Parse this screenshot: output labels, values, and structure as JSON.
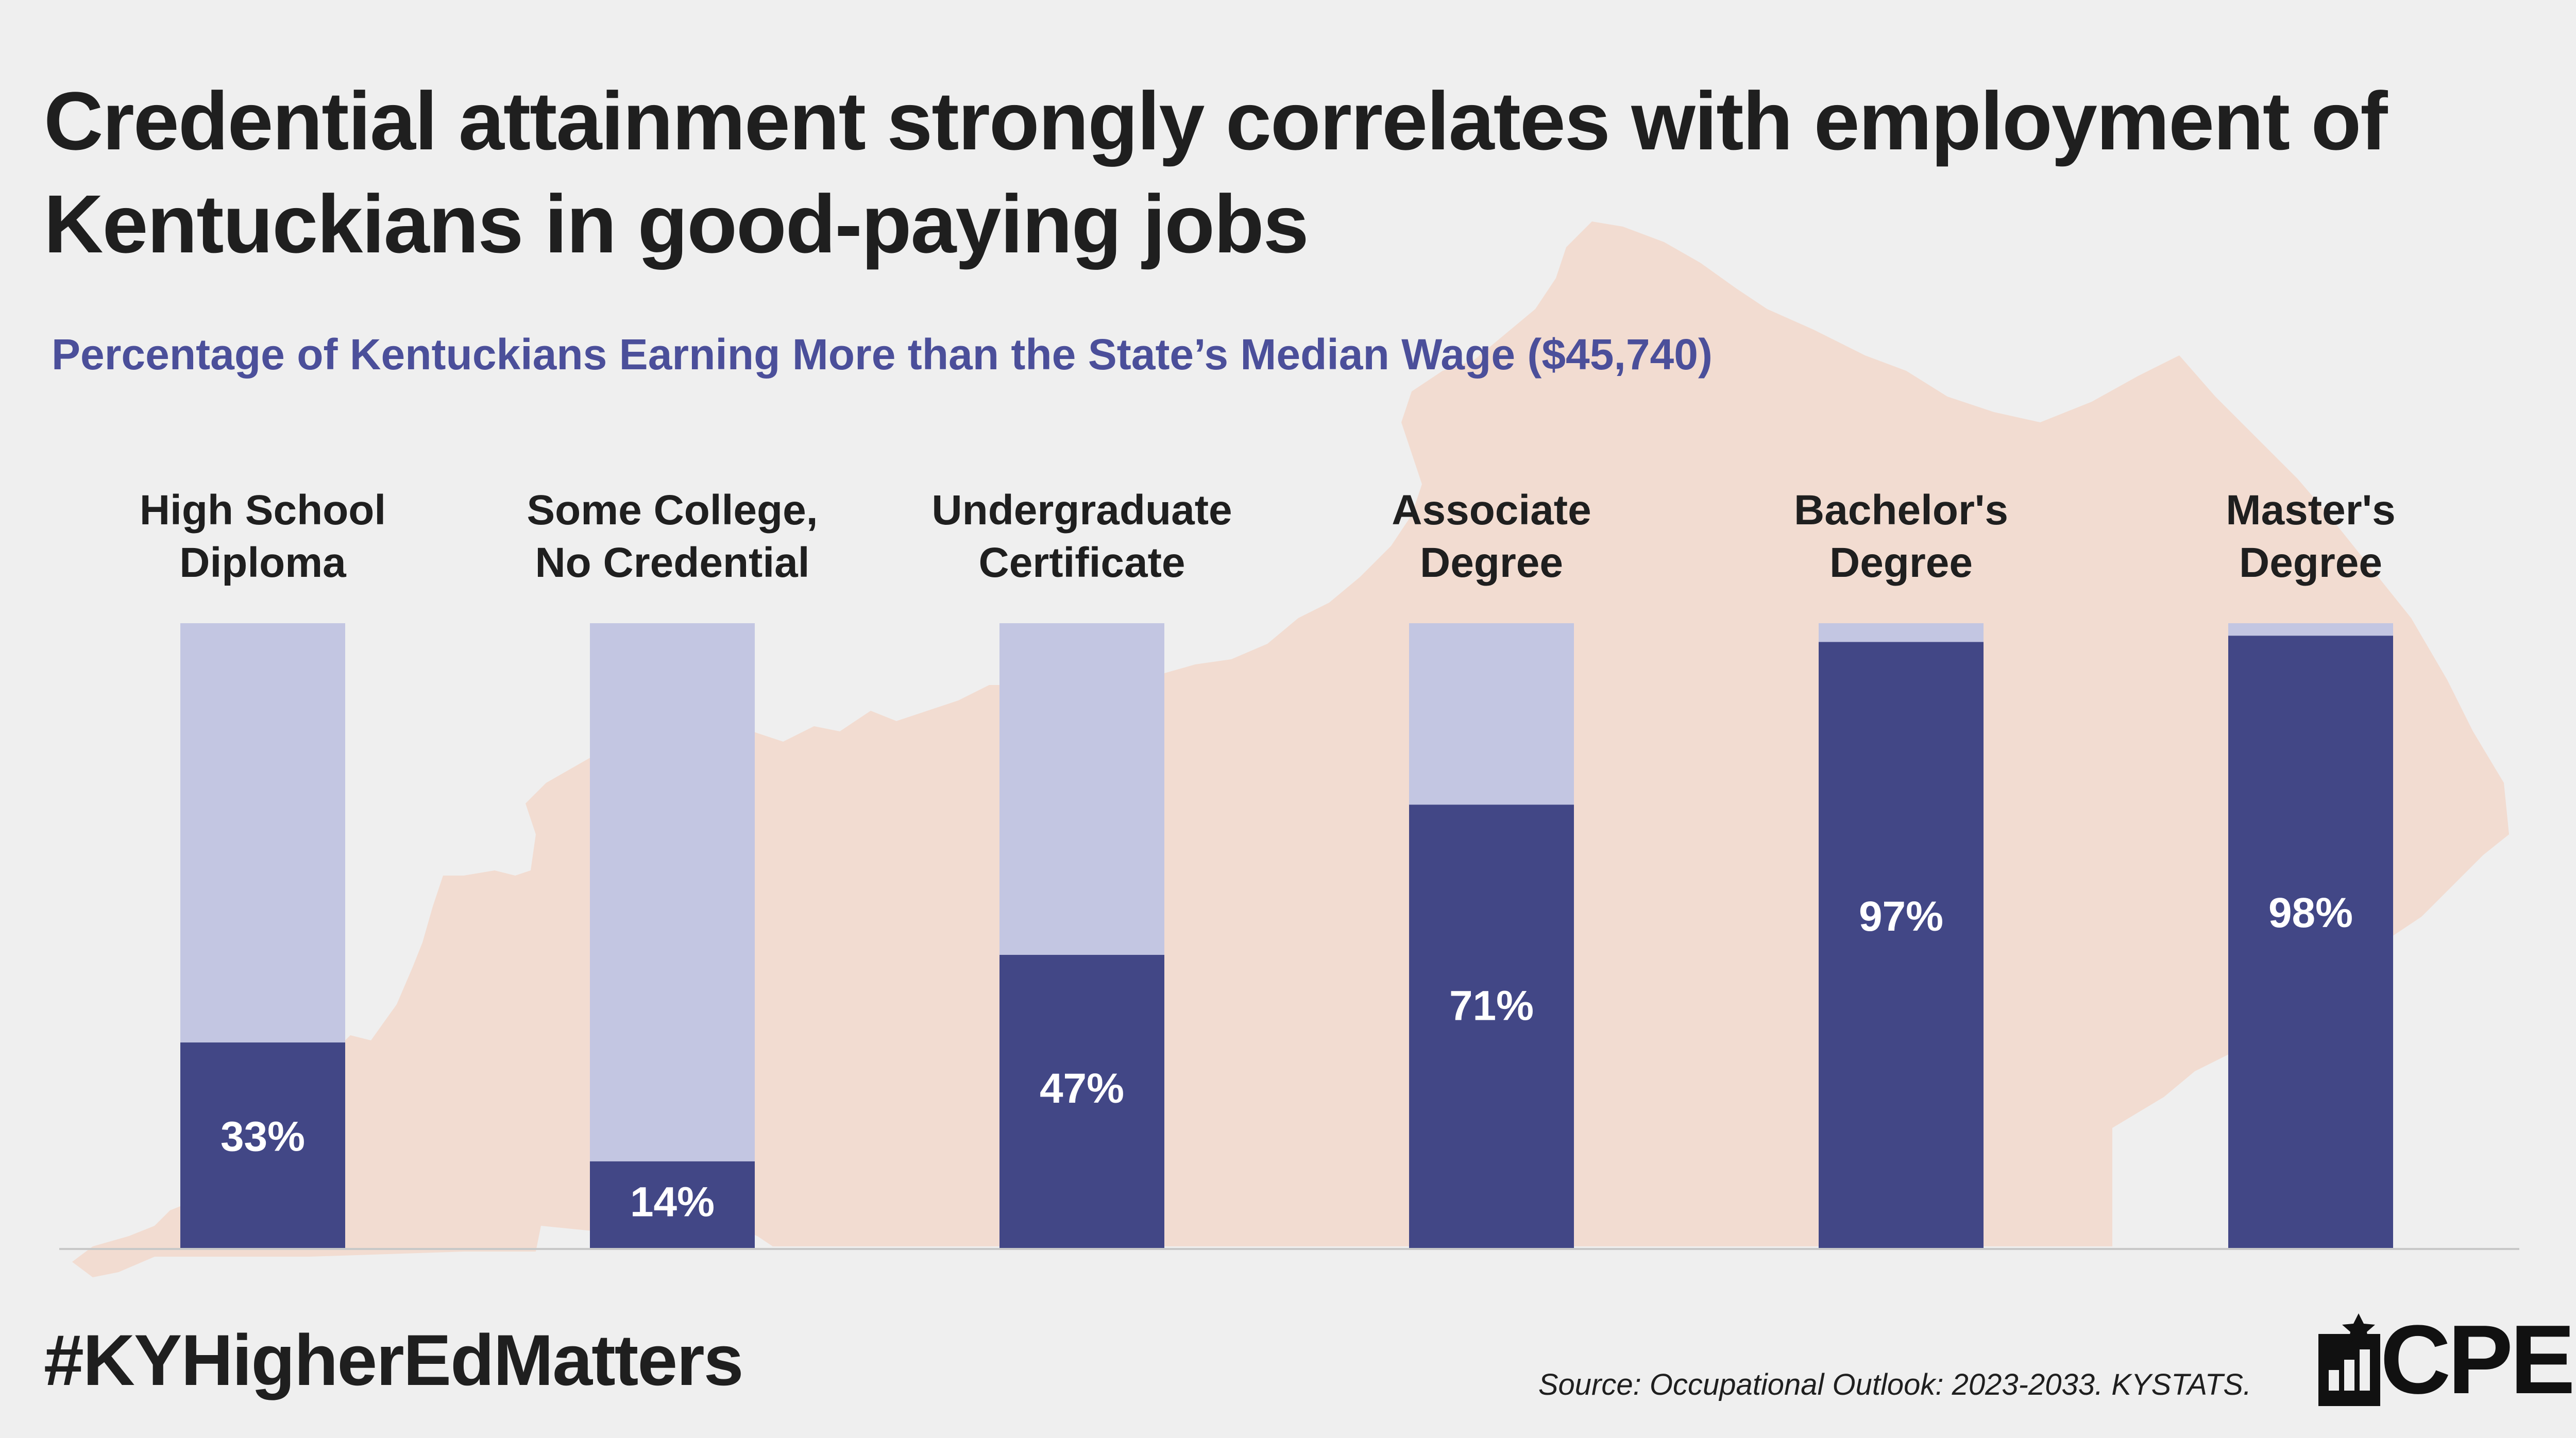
{
  "title": "Credential attainment strongly correlates with employment of Kentuckians in good-paying jobs",
  "hashtag": "#KYHigherEdMatters",
  "source": "Source: Occupational Outlook: 2023-2033. KYSTATS.",
  "logo_text": "CPE",
  "colors": {
    "background": "#efefef",
    "map": "#f2dcd1",
    "bar_fill": "#424786",
    "bar_track": "#c3c6e2",
    "subtitle": "#4b4f9a",
    "text": "#1f1f1f"
  },
  "chart_data": {
    "type": "bar",
    "stacked_to": 100,
    "title": "Percentage of Kentuckians Earning More than the State’s Median Wage ($45,740)",
    "categories": [
      [
        "High School",
        "Diploma"
      ],
      [
        "Some College,",
        "No Credential"
      ],
      [
        "Undergraduate",
        "Certificate"
      ],
      [
        "Associate",
        "Degree"
      ],
      [
        "Bachelor's",
        "Degree"
      ],
      [
        "Master's",
        "Degree"
      ]
    ],
    "values": [
      33,
      14,
      47,
      71,
      97,
      98
    ],
    "value_labels": [
      "33%",
      "14%",
      "47%",
      "71%",
      "97%",
      "98%"
    ],
    "ylim": [
      0,
      100
    ],
    "xlabel": "",
    "ylabel": ""
  }
}
